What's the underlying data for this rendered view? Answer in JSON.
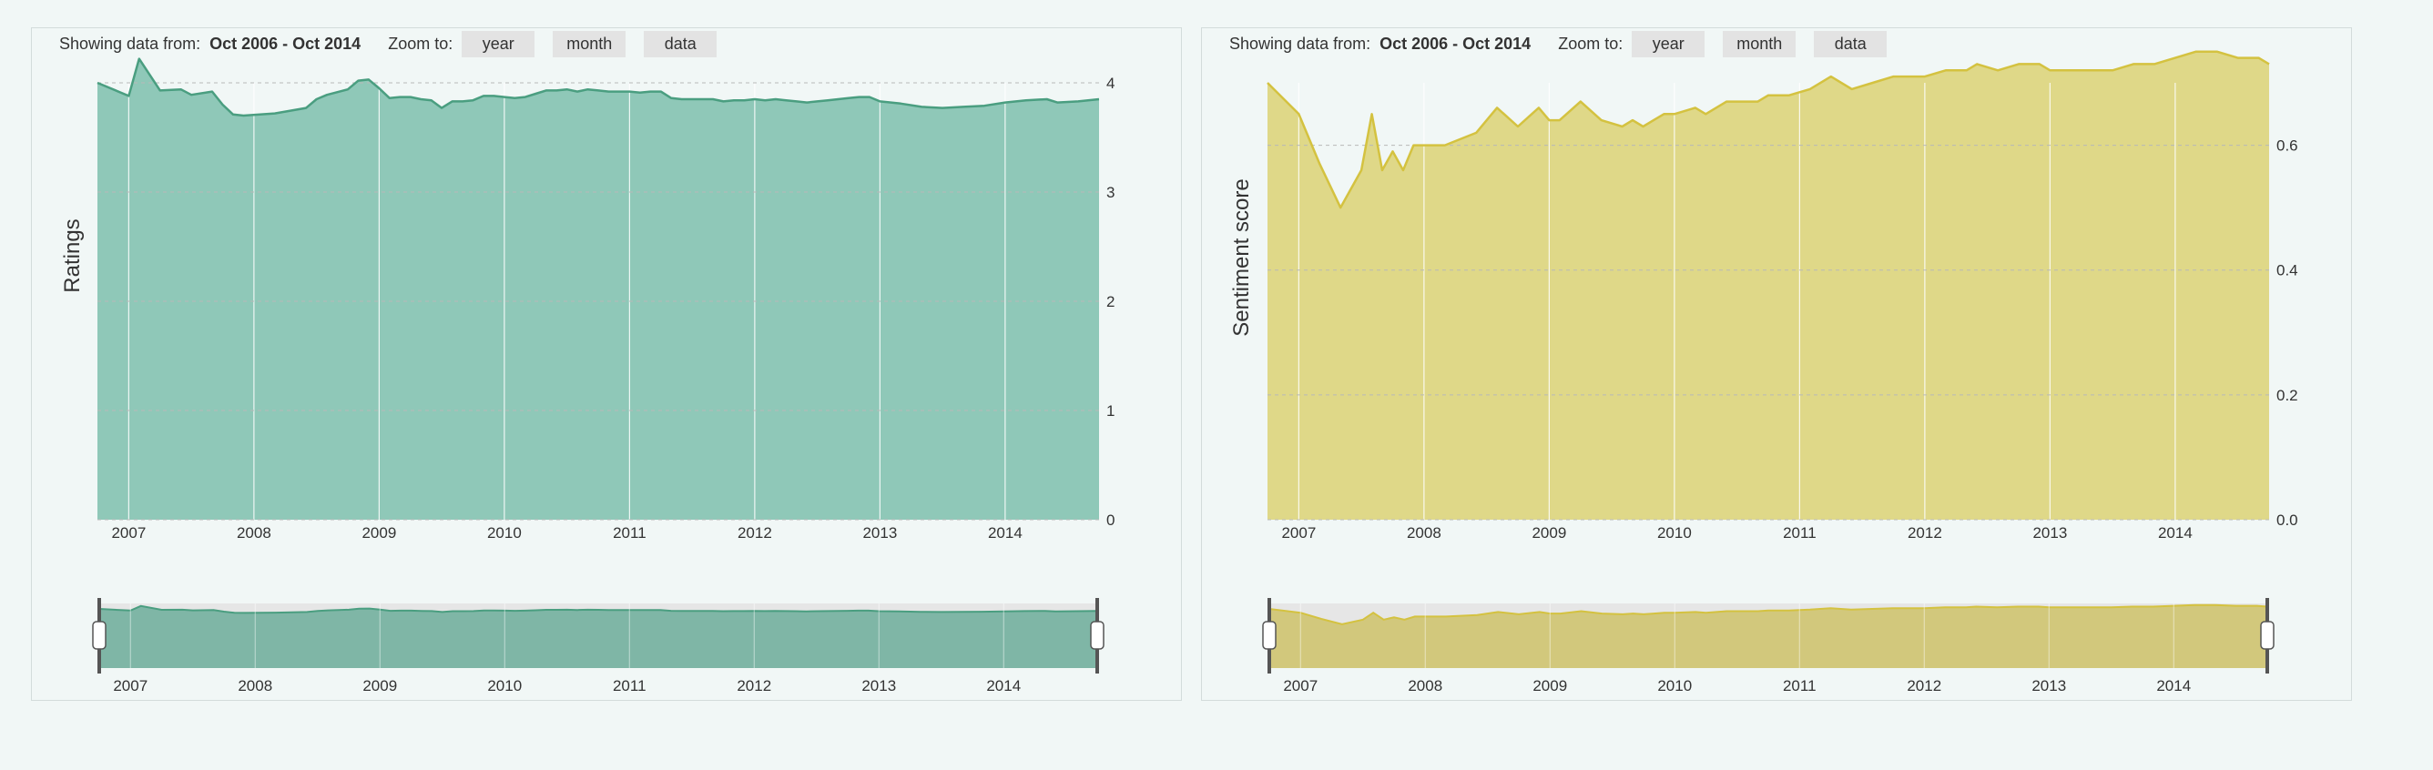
{
  "chart_data": [
    {
      "type": "area",
      "toolbar": {
        "showing_label": "Showing data from:",
        "range": "Oct 2006 - Oct 2014",
        "zoom_label": "Zoom to:",
        "zoom_buttons": [
          "year",
          "month",
          "data"
        ]
      },
      "ylabel": "Ratings",
      "xlabel": "",
      "ylim": [
        0,
        4
      ],
      "yticks": [
        0,
        1,
        2,
        3,
        4
      ],
      "ytick_labels": [
        "0",
        "1",
        "2",
        "3",
        "4"
      ],
      "xlim": [
        "2006-10",
        "2014-10"
      ],
      "xtick_labels": [
        "2007",
        "2008",
        "2009",
        "2010",
        "2011",
        "2012",
        "2013",
        "2014"
      ],
      "grid": true,
      "color": "#8fc8b8",
      "line_color": "#4a9e80",
      "navigator_color": "#7fb6a6",
      "x": [
        "2006-10",
        "2007-01",
        "2007-02",
        "2007-04",
        "2007-06",
        "2007-07",
        "2007-09",
        "2007-10",
        "2007-11",
        "2007-12",
        "2008-03",
        "2008-06",
        "2008-07",
        "2008-08",
        "2008-10",
        "2008-11",
        "2008-12",
        "2009-01",
        "2009-02",
        "2009-03",
        "2009-04",
        "2009-05",
        "2009-06",
        "2009-07",
        "2009-08",
        "2009-09",
        "2009-10",
        "2009-11",
        "2009-12",
        "2010-01",
        "2010-02",
        "2010-03",
        "2010-04",
        "2010-05",
        "2010-06",
        "2010-07",
        "2010-08",
        "2010-09",
        "2010-10",
        "2010-11",
        "2010-12",
        "2011-01",
        "2011-02",
        "2011-03",
        "2011-04",
        "2011-05",
        "2011-06",
        "2011-07",
        "2011-08",
        "2011-09",
        "2011-10",
        "2011-11",
        "2011-12",
        "2012-01",
        "2012-02",
        "2012-03",
        "2012-04",
        "2012-05",
        "2012-06",
        "2012-07",
        "2012-08",
        "2012-09",
        "2012-10",
        "2012-11",
        "2012-12",
        "2013-01",
        "2013-03",
        "2013-05",
        "2013-07",
        "2013-09",
        "2013-11",
        "2014-01",
        "2014-03",
        "2014-05",
        "2014-06",
        "2014-08",
        "2014-10"
      ],
      "values": [
        4.0,
        3.88,
        4.22,
        3.93,
        3.94,
        3.89,
        3.92,
        3.8,
        3.71,
        3.7,
        3.72,
        3.77,
        3.85,
        3.89,
        3.94,
        4.02,
        4.03,
        3.95,
        3.86,
        3.87,
        3.87,
        3.85,
        3.84,
        3.77,
        3.83,
        3.83,
        3.84,
        3.88,
        3.88,
        3.87,
        3.86,
        3.87,
        3.9,
        3.93,
        3.93,
        3.94,
        3.92,
        3.94,
        3.93,
        3.92,
        3.92,
        3.92,
        3.91,
        3.92,
        3.92,
        3.86,
        3.85,
        3.85,
        3.85,
        3.85,
        3.83,
        3.84,
        3.84,
        3.85,
        3.84,
        3.85,
        3.84,
        3.83,
        3.82,
        3.83,
        3.84,
        3.85,
        3.86,
        3.87,
        3.87,
        3.83,
        3.81,
        3.78,
        3.77,
        3.78,
        3.79,
        3.82,
        3.84,
        3.85,
        3.82,
        3.83,
        3.85
      ]
    },
    {
      "type": "area",
      "toolbar": {
        "showing_label": "Showing data from:",
        "range": "Oct 2006 - Oct 2014",
        "zoom_label": "Zoom to:",
        "zoom_buttons": [
          "year",
          "month",
          "data"
        ]
      },
      "ylabel": "Sentiment score",
      "xlabel": "",
      "ylim": [
        0,
        0.7
      ],
      "yticks": [
        0,
        0.2,
        0.4,
        0.6
      ],
      "ytick_labels": [
        "0.0",
        "0.2",
        "0.4",
        "0.6"
      ],
      "xlim": [
        "2006-10",
        "2014-10"
      ],
      "xtick_labels": [
        "2007",
        "2008",
        "2009",
        "2010",
        "2011",
        "2012",
        "2013",
        "2014"
      ],
      "grid": true,
      "color": "#dfd888",
      "line_color": "#d4c240",
      "navigator_color": "#d2c87c",
      "x": [
        "2006-10",
        "2007-01",
        "2007-03",
        "2007-05",
        "2007-07",
        "2007-08",
        "2007-09",
        "2007-10",
        "2007-11",
        "2007-12",
        "2008-03",
        "2008-06",
        "2008-08",
        "2008-10",
        "2008-12",
        "2009-01",
        "2009-02",
        "2009-04",
        "2009-06",
        "2009-08",
        "2009-09",
        "2009-10",
        "2009-11",
        "2009-12",
        "2010-01",
        "2010-03",
        "2010-04",
        "2010-06",
        "2010-08",
        "2010-09",
        "2010-10",
        "2010-12",
        "2011-02",
        "2011-04",
        "2011-06",
        "2011-08",
        "2011-10",
        "2012-01",
        "2012-03",
        "2012-05",
        "2012-06",
        "2012-08",
        "2012-10",
        "2012-12",
        "2013-01",
        "2013-03",
        "2013-05",
        "2013-07",
        "2013-09",
        "2013-11",
        "2014-01",
        "2014-03",
        "2014-05",
        "2014-07",
        "2014-09",
        "2014-10"
      ],
      "values": [
        0.7,
        0.65,
        0.57,
        0.5,
        0.56,
        0.65,
        0.56,
        0.59,
        0.56,
        0.6,
        0.6,
        0.62,
        0.66,
        0.63,
        0.66,
        0.64,
        0.64,
        0.67,
        0.64,
        0.63,
        0.64,
        0.63,
        0.64,
        0.65,
        0.65,
        0.66,
        0.65,
        0.67,
        0.67,
        0.67,
        0.68,
        0.68,
        0.69,
        0.71,
        0.69,
        0.7,
        0.71,
        0.71,
        0.72,
        0.72,
        0.73,
        0.72,
        0.73,
        0.73,
        0.72,
        0.72,
        0.72,
        0.72,
        0.73,
        0.73,
        0.74,
        0.75,
        0.75,
        0.74,
        0.74,
        0.73
      ]
    }
  ]
}
